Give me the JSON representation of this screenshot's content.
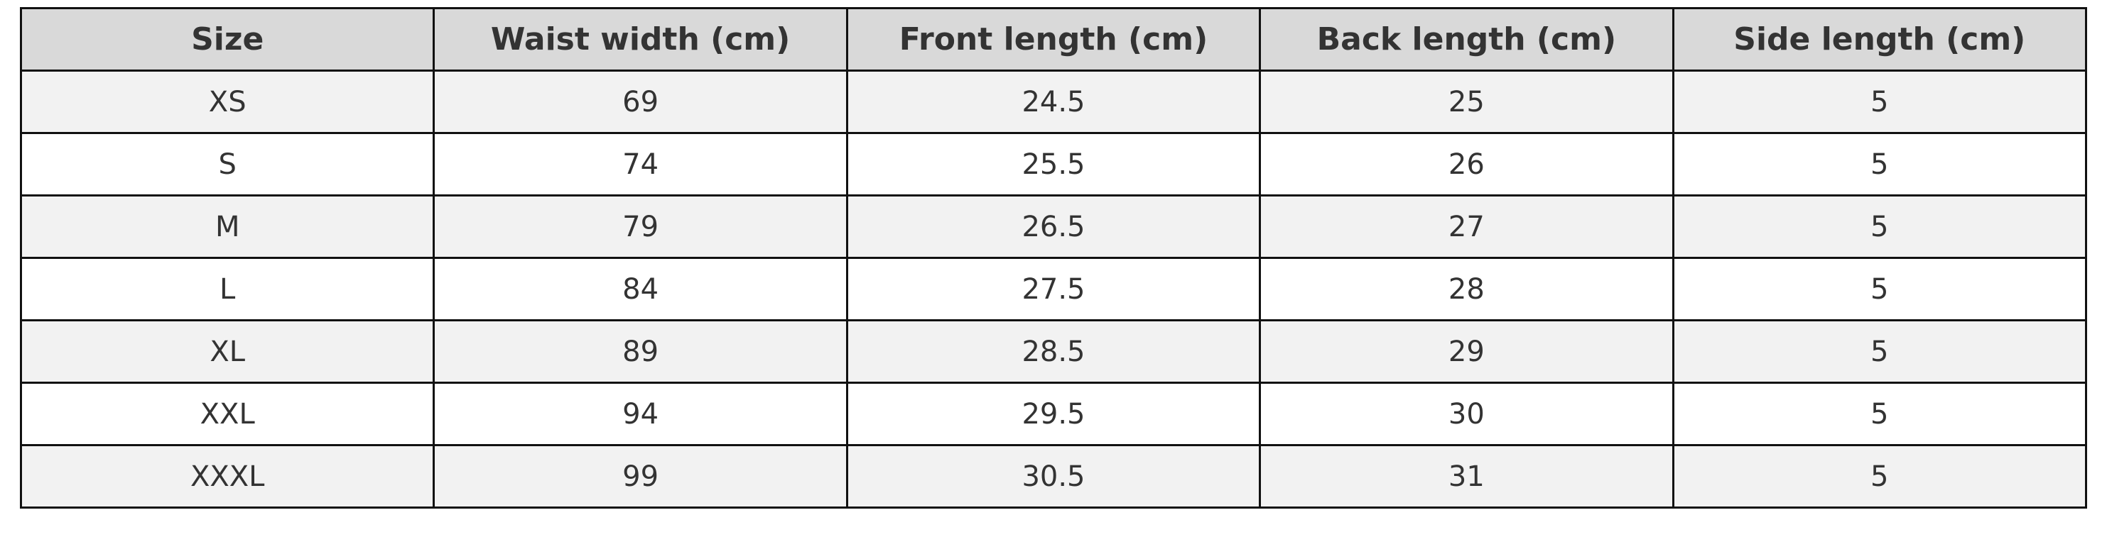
{
  "table": {
    "header": [
      "Size",
      "Waist width (cm)",
      "Front length (cm)",
      "Back length (cm)",
      "Side length (cm)"
    ],
    "rows": [
      [
        "XS",
        69,
        24.5,
        25,
        5
      ],
      [
        "S",
        74,
        25.5,
        26,
        5
      ],
      [
        "M",
        79,
        26.5,
        27,
        5
      ],
      [
        "L",
        84,
        27.5,
        28,
        5
      ],
      [
        "XL",
        89,
        28.5,
        29,
        5
      ],
      [
        "XXL",
        94,
        29.5,
        30,
        5
      ],
      [
        "XXXL",
        99,
        30.5,
        31,
        5
      ]
    ]
  }
}
